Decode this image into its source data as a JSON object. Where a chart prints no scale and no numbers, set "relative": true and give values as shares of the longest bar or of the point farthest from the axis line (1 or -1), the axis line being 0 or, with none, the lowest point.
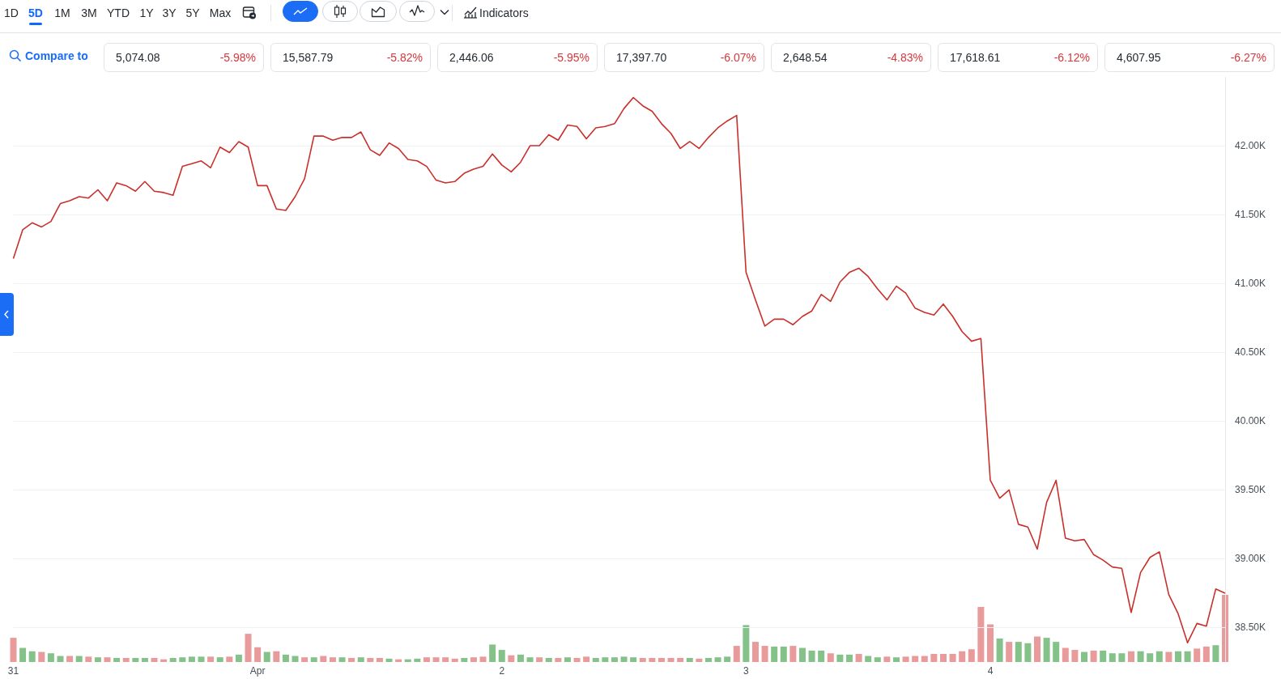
{
  "chart_data": [
    {
      "type": "line",
      "categories": [
        "31",
        null,
        null,
        null,
        null,
        null,
        null,
        null,
        null,
        null,
        null,
        null,
        null,
        null,
        null,
        null,
        null,
        null,
        null,
        null,
        null,
        null,
        null,
        null,
        null,
        null,
        "Apr",
        null,
        null,
        null,
        null,
        null,
        null,
        null,
        null,
        null,
        null,
        null,
        null,
        null,
        null,
        null,
        null,
        null,
        null,
        null,
        null,
        null,
        null,
        null,
        null,
        null,
        "2",
        null,
        null,
        null,
        null,
        null,
        null,
        null,
        null,
        null,
        null,
        null,
        null,
        null,
        null,
        null,
        null,
        null,
        null,
        null,
        null,
        null,
        null,
        null,
        null,
        null,
        "3",
        null,
        null,
        null,
        null,
        null,
        null,
        null,
        null,
        null,
        null,
        null,
        null,
        null,
        null,
        null,
        null,
        null,
        null,
        null,
        null,
        null,
        null,
        null,
        null,
        null,
        "4",
        null,
        null,
        null,
        null,
        null,
        null,
        null,
        null,
        null,
        null,
        null,
        null,
        null,
        null,
        null,
        null,
        null,
        null,
        null,
        null,
        null,
        null,
        null,
        null,
        null
      ],
      "values": [
        41180,
        41390,
        41440,
        41410,
        41450,
        41580,
        41600,
        41630,
        41620,
        41680,
        41600,
        41730,
        41710,
        41670,
        41740,
        41670,
        41660,
        41640,
        41850,
        41870,
        41890,
        41840,
        41990,
        41950,
        42030,
        41990,
        41710,
        41710,
        41540,
        41530,
        41630,
        41760,
        42070,
        42070,
        42040,
        42060,
        42060,
        42100,
        41970,
        41930,
        42020,
        41980,
        41900,
        41890,
        41850,
        41750,
        41730,
        41740,
        41800,
        41830,
        41850,
        41940,
        41860,
        41810,
        41880,
        42000,
        42000,
        42080,
        42040,
        42150,
        42140,
        42050,
        42130,
        42140,
        42160,
        42270,
        42350,
        42290,
        42250,
        42160,
        42090,
        41980,
        42030,
        41980,
        42060,
        42130,
        42180,
        42220,
        41080,
        40880,
        40690,
        40740,
        40740,
        40700,
        40760,
        40800,
        40920,
        40870,
        41010,
        41080,
        41110,
        41050,
        40960,
        40880,
        40980,
        40930,
        40820,
        40790,
        40770,
        40850,
        40760,
        40650,
        40580,
        40600,
        39570,
        39440,
        39500,
        39250,
        39230,
        39070,
        39410,
        39570,
        39150,
        39130,
        39140,
        39030,
        38990,
        38940,
        38930,
        38610,
        38900,
        39010,
        39050,
        38740,
        38600,
        38390,
        38530,
        38510,
        38780,
        38750
      ],
      "color": "#c9302c",
      "ylim": [
        38250,
        42500
      ],
      "yticks": [
        {
          "value": 38500,
          "label": "38.50K"
        },
        {
          "value": 39000,
          "label": "39.00K"
        },
        {
          "value": 39500,
          "label": "39.50K"
        },
        {
          "value": 40000,
          "label": "40.00K"
        },
        {
          "value": 40500,
          "label": "40.50K"
        },
        {
          "value": 41000,
          "label": "41.00K"
        },
        {
          "value": 41500,
          "label": "41.50K"
        },
        {
          "value": 42000,
          "label": "42.00K"
        }
      ],
      "grid": "y",
      "annotations": [
        "1D",
        "5D",
        "1M",
        "3M",
        "YTD",
        "1Y",
        "3Y",
        "5Y",
        "Max",
        "Indicators",
        "Compare to",
        "5,074.08",
        "-5.98%",
        "15,587.79",
        "-5.82%",
        "2,446.06",
        "-5.95%",
        "17,397.70",
        "-6.07%",
        "2,648.54",
        "-4.83%",
        "17,618.61",
        "-6.12%",
        "4,607.95",
        "-6.27%"
      ]
    },
    {
      "type": "bar",
      "relative": true,
      "categories": [
        null,
        null,
        null,
        null,
        null,
        null,
        null,
        null,
        null,
        null,
        null,
        null,
        null,
        null,
        null,
        null,
        null,
        null,
        null,
        null,
        null,
        null,
        null,
        null,
        null,
        null,
        null,
        null,
        null,
        null,
        null,
        null,
        null,
        null,
        null,
        null,
        null,
        null,
        null,
        null,
        null,
        null,
        null,
        null,
        null,
        null,
        null,
        null,
        null,
        null,
        null,
        null,
        null,
        null,
        null,
        null,
        null,
        null,
        null,
        null,
        null,
        null,
        null,
        null,
        null,
        null,
        null,
        null,
        null,
        null,
        null,
        null,
        null,
        null,
        null,
        null,
        null,
        null,
        null,
        null,
        null,
        null,
        null,
        null,
        null,
        null,
        null,
        null,
        null,
        null,
        null,
        null,
        null,
        null,
        null,
        null,
        null,
        null,
        null,
        null,
        null,
        null,
        null,
        null,
        null,
        null,
        null,
        null,
        null,
        null,
        null,
        null,
        null,
        null,
        null,
        null,
        null,
        null,
        null,
        null,
        null,
        null,
        null,
        null,
        null,
        null,
        null,
        null,
        null,
        null
      ],
      "values": [
        0.36,
        0.21,
        0.16,
        0.15,
        0.13,
        0.09,
        0.09,
        0.09,
        0.08,
        0.07,
        0.07,
        0.06,
        0.06,
        0.06,
        0.06,
        0.06,
        0.04,
        0.06,
        0.07,
        0.08,
        0.08,
        0.08,
        0.07,
        0.08,
        0.11,
        0.42,
        0.22,
        0.15,
        0.16,
        0.11,
        0.09,
        0.07,
        0.07,
        0.09,
        0.07,
        0.07,
        0.06,
        0.07,
        0.06,
        0.06,
        0.05,
        0.04,
        0.04,
        0.05,
        0.07,
        0.07,
        0.07,
        0.05,
        0.06,
        0.07,
        0.08,
        0.26,
        0.18,
        0.1,
        0.11,
        0.07,
        0.07,
        0.06,
        0.06,
        0.07,
        0.06,
        0.08,
        0.06,
        0.07,
        0.07,
        0.08,
        0.07,
        0.06,
        0.06,
        0.06,
        0.06,
        0.06,
        0.06,
        0.05,
        0.06,
        0.07,
        0.08,
        0.24,
        0.55,
        0.3,
        0.24,
        0.23,
        0.23,
        0.24,
        0.21,
        0.17,
        0.17,
        0.13,
        0.11,
        0.11,
        0.12,
        0.09,
        0.07,
        0.08,
        0.07,
        0.08,
        0.09,
        0.09,
        0.12,
        0.12,
        0.12,
        0.16,
        0.19,
        0.82,
        0.56,
        0.35,
        0.3,
        0.3,
        0.28,
        0.38,
        0.36,
        0.3,
        0.21,
        0.18,
        0.15,
        0.17,
        0.17,
        0.13,
        0.13,
        0.16,
        0.16,
        0.13,
        0.16,
        0.15,
        0.16,
        0.16,
        0.2,
        0.23,
        0.25,
        1
      ],
      "colors": [
        "#e99a9a",
        "#84c28a",
        "#84c28a",
        "#e99a9a",
        "#84c28a",
        "#84c28a",
        "#e99a9a",
        "#84c28a",
        "#e99a9a",
        "#84c28a",
        "#e99a9a",
        "#84c28a",
        "#e99a9a",
        "#84c28a",
        "#84c28a",
        "#e99a9a",
        "#e99a9a",
        "#84c28a",
        "#84c28a",
        "#84c28a",
        "#84c28a",
        "#e99a9a",
        "#84c28a",
        "#e99a9a",
        "#84c28a",
        "#e99a9a",
        "#e99a9a",
        "#84c28a",
        "#e99a9a",
        "#84c28a",
        "#84c28a",
        "#e99a9a",
        "#84c28a",
        "#e99a9a",
        "#e99a9a",
        "#84c28a",
        "#e99a9a",
        "#84c28a",
        "#e99a9a",
        "#e99a9a",
        "#84c28a",
        "#e99a9a",
        "#84c28a",
        "#84c28a",
        "#e99a9a",
        "#e99a9a",
        "#e99a9a",
        "#e99a9a",
        "#84c28a",
        "#e99a9a",
        "#e99a9a",
        "#84c28a",
        "#84c28a",
        "#e99a9a",
        "#84c28a",
        "#84c28a",
        "#e99a9a",
        "#84c28a",
        "#e99a9a",
        "#84c28a",
        "#e99a9a",
        "#e99a9a",
        "#84c28a",
        "#84c28a",
        "#84c28a",
        "#84c28a",
        "#84c28a",
        "#e99a9a",
        "#e99a9a",
        "#e99a9a",
        "#e99a9a",
        "#e99a9a",
        "#84c28a",
        "#e99a9a",
        "#84c28a",
        "#84c28a",
        "#84c28a",
        "#e99a9a",
        "#84c28a",
        "#e99a9a",
        "#e99a9a",
        "#84c28a",
        "#84c28a",
        "#e99a9a",
        "#84c28a",
        "#84c28a",
        "#84c28a",
        "#e99a9a",
        "#84c28a",
        "#84c28a",
        "#e99a9a",
        "#84c28a",
        "#84c28a",
        "#e99a9a",
        "#84c28a",
        "#e99a9a",
        "#e99a9a",
        "#e99a9a",
        "#e99a9a",
        "#e99a9a",
        "#e99a9a",
        "#e99a9a",
        "#e99a9a",
        "#e99a9a",
        "#e99a9a",
        "#84c28a",
        "#e99a9a",
        "#84c28a",
        "#84c28a",
        "#e99a9a",
        "#84c28a",
        "#84c28a",
        "#e99a9a",
        "#e99a9a",
        "#84c28a",
        "#e99a9a",
        "#84c28a",
        "#84c28a",
        "#84c28a",
        "#e99a9a",
        "#84c28a",
        "#84c28a",
        "#84c28a",
        "#e99a9a",
        "#84c28a",
        "#84c28a",
        "#e99a9a",
        "#e99a9a",
        "#84c28a",
        "#e99a9a"
      ]
    }
  ]
}
